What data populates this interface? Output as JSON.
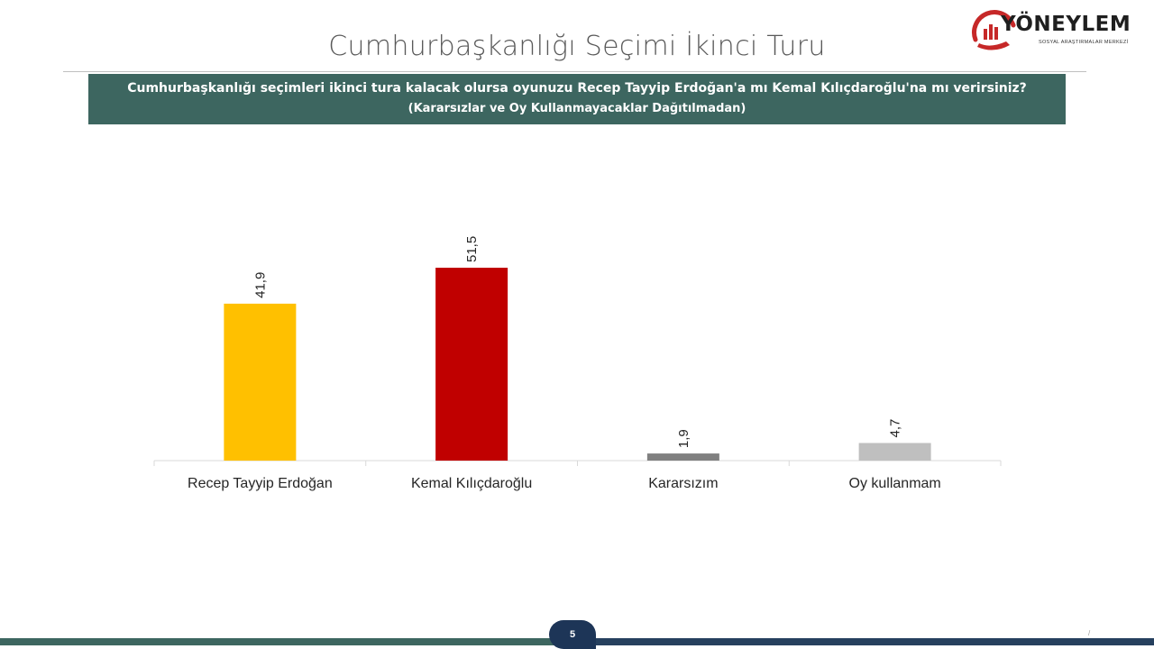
{
  "slide": {
    "title": "Cumhurbaşkanlığı Seçimi İkinci Turu",
    "question": "Cumhurbaşkanlığı seçimleri ikinci tura kalacak olursa oyunuzu Recep Tayyip Erdoğan'a mı Kemal Kılıçdaroğlu'na mı verirsiniz?",
    "note": "(Kararsızlar ve Oy Kullanmayacaklar Dağıtılmadan)",
    "page_number": "5",
    "corner_mark": "/"
  },
  "logo": {
    "name": "YÖNEYLEM",
    "subtitle": "SOSYAL ARAŞTIRMALAR MERKEZİ",
    "icon": "chart-hand-arc-logo-icon",
    "color": "#c62828"
  },
  "colors": {
    "header_bg": "#3d6660",
    "footer_left": "#3d6660",
    "footer_right": "#26405e",
    "badge": "#1d3557"
  },
  "chart_data": {
    "type": "bar",
    "categories": [
      "Recep Tayyip Erdoğan",
      "Kemal Kılıçdaroğlu",
      "Kararsızım",
      "Oy kullanmam"
    ],
    "values": [
      41.9,
      51.5,
      1.9,
      4.7
    ],
    "value_labels": [
      "41,9",
      "51,5",
      "1,9",
      "4,7"
    ],
    "colors": [
      "#ffc000",
      "#c00000",
      "#808080",
      "#bfbfbf"
    ],
    "ylim": [
      0,
      60
    ],
    "grid": false,
    "legend": "none",
    "title": "",
    "xlabel": "",
    "ylabel": ""
  }
}
